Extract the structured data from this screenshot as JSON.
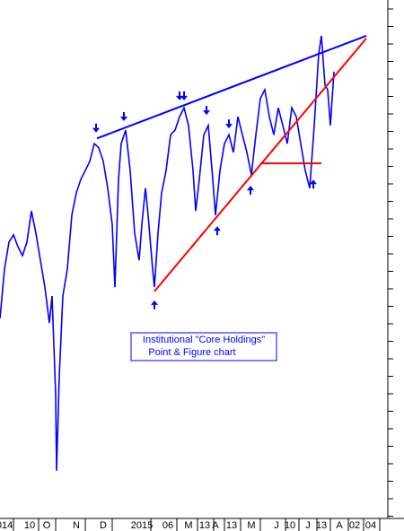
{
  "chart_data": {
    "type": "line",
    "xlim": [
      0,
      450
    ],
    "ylim": [
      0,
      100
    ],
    "xticks": [
      {
        "value": 5,
        "label": "014"
      },
      {
        "value": 33,
        "label": "10"
      },
      {
        "value": 52,
        "label": "O"
      },
      {
        "value": 85,
        "label": "N"
      },
      {
        "value": 115,
        "label": "D"
      },
      {
        "value": 158,
        "label": "2015"
      },
      {
        "value": 187,
        "label": "06"
      },
      {
        "value": 210,
        "label": "M"
      },
      {
        "value": 228,
        "label": "13"
      },
      {
        "value": 240,
        "label": "A"
      },
      {
        "value": 258,
        "label": "13"
      },
      {
        "value": 280,
        "label": "M"
      },
      {
        "value": 308,
        "label": "J"
      },
      {
        "value": 323,
        "label": "10"
      },
      {
        "value": 343,
        "label": "J"
      },
      {
        "value": 358,
        "label": "13"
      },
      {
        "value": 378,
        "label": "A"
      },
      {
        "value": 395,
        "label": "02"
      },
      {
        "value": 413,
        "label": "04"
      }
    ],
    "series": [
      {
        "color": "#0000ff",
        "x": [
          0,
          5,
          10,
          15,
          20,
          25,
          30,
          35,
          40,
          45,
          50,
          55,
          58,
          62,
          63,
          66,
          70,
          75,
          80,
          85,
          90,
          95,
          100,
          105,
          110,
          115,
          120,
          125,
          128,
          132,
          135,
          140,
          145,
          150,
          155,
          158,
          162,
          165,
          170,
          172,
          176,
          180,
          185,
          190,
          195,
          200,
          205,
          210,
          215,
          218,
          222,
          227,
          232,
          237,
          240,
          245,
          250,
          255,
          260,
          265,
          270,
          275,
          280,
          285,
          290,
          295,
          300,
          305,
          310,
          315,
          320,
          325,
          330,
          335,
          340,
          345,
          350,
          355,
          358,
          362,
          365,
          368,
          372
        ],
        "values": [
          38.6,
          48.1,
          53.3,
          54.7,
          52.4,
          50.7,
          53.3,
          59.3,
          55.0,
          49.8,
          44.6,
          37.7,
          42.9,
          23.9,
          9.2,
          27.3,
          42.9,
          48.1,
          58.5,
          62.8,
          65.4,
          67.1,
          68.9,
          72.3,
          71.5,
          68.9,
          63.7,
          56.7,
          44.6,
          65.4,
          72.3,
          74.9,
          67.1,
          55.0,
          49.8,
          56.7,
          63.7,
          58.5,
          48.1,
          44.6,
          55.0,
          62.8,
          67.1,
          74.0,
          74.9,
          77.5,
          79.2,
          75.8,
          67.1,
          59.3,
          65.4,
          74.0,
          75.8,
          65.4,
          58.5,
          67.1,
          72.3,
          74.0,
          70.6,
          77.5,
          74.0,
          70.6,
          66.3,
          74.0,
          81.0,
          82.7,
          77.5,
          74.0,
          79.2,
          75.8,
          72.3,
          79.2,
          77.5,
          72.3,
          67.1,
          63.7,
          75.8,
          89.6,
          93.1,
          83.6,
          82.7,
          75.8,
          86.2
        ]
      }
    ],
    "trend_lines": [
      {
        "color": "#0000ff",
        "x": [
          108,
          408
        ],
        "values": [
          73.3,
          93.1
        ]
      },
      {
        "color": "#ff0000",
        "x": [
          172,
          408
        ],
        "values": [
          43.8,
          92.6
        ]
      },
      {
        "color": "#ff0000",
        "x": [
          290,
          358
        ],
        "values": [
          68.5,
          68.5
        ]
      }
    ],
    "markers": [
      {
        "direction": "down",
        "x": 107,
        "value": 75.3
      },
      {
        "direction": "down",
        "x": 138,
        "value": 77.5
      },
      {
        "direction": "down",
        "x": 200,
        "value": 81.5
      },
      {
        "direction": "down",
        "x": 205,
        "value": 81.5
      },
      {
        "direction": "down",
        "x": 230,
        "value": 78.7
      },
      {
        "direction": "down",
        "x": 255,
        "value": 76.1
      },
      {
        "direction": "up",
        "x": 172,
        "value": 41.2
      },
      {
        "direction": "up",
        "x": 242,
        "value": 55.5
      },
      {
        "direction": "up",
        "x": 279,
        "value": 63.3
      },
      {
        "direction": "up",
        "x": 349,
        "value": 64.5
      }
    ],
    "annotation": {
      "lines": [
        "Institutional \"Core Holdings\"",
        "Point & Figure chart"
      ]
    }
  }
}
